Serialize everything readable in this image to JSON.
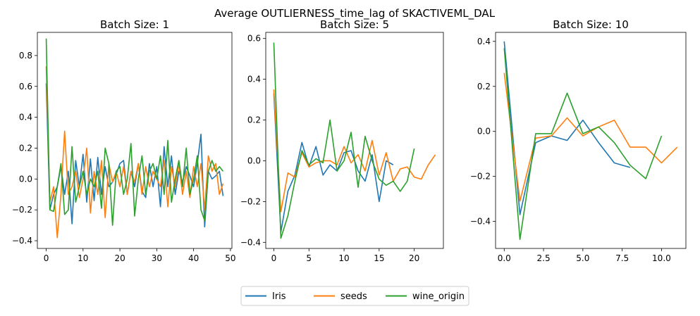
{
  "figure": {
    "suptitle": "Average OUTLIERNESS_time_lag of SKACTIVEML_DAL"
  },
  "colors": {
    "Iris": "#1f77b4",
    "seeds": "#ff7f0e",
    "wine_origin": "#2ca02c"
  },
  "legend": {
    "placement": "bottom-center",
    "entries": [
      "Iris",
      "seeds",
      "wine_origin"
    ]
  },
  "chart_data": [
    {
      "type": "line",
      "title": "Batch Size: 1",
      "xlim": [
        -2.4,
        50.4
      ],
      "ylim": [
        -0.45,
        0.95
      ],
      "xticks": [
        0,
        10,
        20,
        30,
        40,
        50
      ],
      "yticks": [
        -0.4,
        -0.2,
        0.0,
        0.2,
        0.4,
        0.6,
        0.8
      ],
      "series": [
        {
          "name": "Iris",
          "x": [
            0,
            1,
            2,
            3,
            4,
            5,
            6,
            7,
            8,
            9,
            10,
            11,
            12,
            13,
            14,
            15,
            16,
            17,
            18,
            19,
            20,
            21,
            22,
            23,
            24,
            25,
            26,
            27,
            28,
            29,
            30,
            31,
            32,
            33,
            34,
            35,
            36,
            37,
            38,
            39,
            40,
            41,
            42,
            43,
            44,
            45,
            46,
            47,
            48
          ],
          "values": [
            0.62,
            -0.2,
            -0.1,
            -0.05,
            0.08,
            -0.1,
            0.05,
            -0.29,
            0.12,
            -0.05,
            0.16,
            -0.15,
            0.13,
            -0.14,
            0.14,
            -0.1,
            0.08,
            -0.05,
            -0.02,
            0.03,
            0.1,
            0.12,
            -0.1,
            0.05,
            -0.05,
            0.1,
            -0.08,
            -0.12,
            0.1,
            -0.05,
            0.08,
            -0.18,
            0.21,
            -0.05,
            0.15,
            -0.1,
            0.05,
            -0.02,
            0.08,
            0.02,
            -0.05,
            0.1,
            0.29,
            -0.31,
            0.05,
            0.0,
            0.02,
            0.05,
            -0.11
          ]
        },
        {
          "name": "seeds",
          "x": [
            0,
            1,
            2,
            3,
            4,
            5,
            6,
            7,
            8,
            9,
            10,
            11,
            12,
            13,
            14,
            15,
            16,
            17,
            18,
            19,
            20,
            21,
            22,
            23,
            24,
            25,
            26,
            27,
            28,
            29,
            30,
            31,
            32,
            33,
            34,
            35,
            36,
            37,
            38,
            39,
            40,
            41,
            42,
            43,
            44,
            45,
            46,
            47,
            48
          ],
          "values": [
            0.73,
            -0.15,
            -0.05,
            -0.38,
            -0.1,
            0.31,
            -0.1,
            -0.05,
            0.05,
            -0.12,
            0.0,
            0.2,
            -0.22,
            0.05,
            -0.1,
            0.12,
            -0.25,
            0.1,
            -0.02,
            0.05,
            -0.05,
            0.08,
            -0.1,
            0.05,
            -0.02,
            0.1,
            -0.1,
            0.08,
            -0.05,
            0.05,
            0.0,
            -0.05,
            0.12,
            -0.18,
            0.08,
            -0.05,
            0.1,
            -0.1,
            0.05,
            -0.12,
            0.08,
            -0.05,
            0.1,
            -0.2,
            0.15,
            0.05,
            0.1,
            -0.1,
            -0.03
          ]
        },
        {
          "name": "wine_origin",
          "x": [
            0,
            1,
            2,
            3,
            4,
            5,
            6,
            7,
            8,
            9,
            10,
            11,
            12,
            13,
            14,
            15,
            16,
            17,
            18,
            19,
            20,
            21,
            22,
            23,
            24,
            25,
            26,
            27,
            28,
            29,
            30,
            31,
            32,
            33,
            34,
            35,
            36,
            37,
            38,
            39,
            40,
            41,
            42,
            43,
            44,
            45,
            46,
            47,
            48
          ],
          "values": [
            0.91,
            -0.2,
            -0.21,
            -0.05,
            0.1,
            -0.23,
            -0.2,
            0.21,
            -0.15,
            -0.05,
            0.05,
            -0.1,
            0.0,
            -0.05,
            0.05,
            -0.19,
            0.2,
            0.1,
            -0.3,
            0.05,
            0.08,
            -0.1,
            0.0,
            0.23,
            -0.24,
            0.0,
            0.15,
            -0.1,
            0.05,
            0.1,
            0.0,
            0.15,
            -0.1,
            0.25,
            -0.15,
            0.0,
            0.12,
            -0.05,
            0.2,
            -0.1,
            0.0,
            0.15,
            -0.2,
            -0.27,
            0.05,
            0.12,
            0.05,
            0.08,
            0.05
          ]
        }
      ]
    },
    {
      "type": "line",
      "title": "Batch Size: 5",
      "xlim": [
        -1.15,
        24.15
      ],
      "ylim": [
        -0.43,
        0.63
      ],
      "xticks": [
        0,
        5,
        10,
        15,
        20
      ],
      "yticks": [
        -0.4,
        -0.2,
        0.0,
        0.2,
        0.4,
        0.6
      ],
      "series": [
        {
          "name": "Iris",
          "x": [
            0,
            1,
            2,
            3,
            4,
            5,
            6,
            7,
            8,
            9,
            10,
            11,
            12,
            13,
            14,
            15,
            16,
            17
          ],
          "values": [
            0.33,
            -0.35,
            -0.15,
            -0.07,
            0.09,
            -0.03,
            0.07,
            -0.07,
            -0.02,
            -0.05,
            0.04,
            0.05,
            -0.05,
            -0.1,
            0.03,
            -0.2,
            0.0,
            -0.02
          ]
        },
        {
          "name": "seeds",
          "x": [
            0,
            1,
            2,
            3,
            4,
            5,
            6,
            7,
            8,
            9,
            10,
            11,
            12,
            13,
            14,
            15,
            16,
            17,
            18,
            19,
            20,
            21,
            22,
            23
          ],
          "values": [
            0.35,
            -0.25,
            -0.06,
            -0.08,
            0.04,
            -0.03,
            -0.01,
            0.0,
            0.0,
            -0.02,
            0.07,
            -0.01,
            0.03,
            -0.05,
            0.1,
            -0.07,
            0.04,
            -0.1,
            -0.04,
            -0.03,
            -0.08,
            -0.09,
            -0.02,
            0.03
          ]
        },
        {
          "name": "wine_origin",
          "x": [
            0,
            1,
            2,
            3,
            4,
            5,
            6,
            7,
            8,
            9,
            10,
            11,
            12,
            13,
            14,
            15,
            16,
            17,
            18,
            19,
            20
          ],
          "values": [
            0.58,
            -0.38,
            -0.27,
            -0.1,
            0.05,
            -0.02,
            0.01,
            -0.01,
            0.2,
            -0.05,
            0.0,
            0.14,
            -0.13,
            0.12,
            0.0,
            -0.09,
            -0.12,
            -0.1,
            -0.15,
            -0.1,
            0.06
          ]
        }
      ]
    },
    {
      "type": "line",
      "title": "Batch Size: 10",
      "xlim": [
        -0.55,
        11.55
      ],
      "ylim": [
        -0.52,
        0.44
      ],
      "xticks": [
        0.0,
        2.5,
        5.0,
        7.5,
        10.0
      ],
      "yticks": [
        -0.4,
        -0.2,
        0.0,
        0.2,
        0.4
      ],
      "series": [
        {
          "name": "Iris",
          "x": [
            0,
            1,
            2,
            3,
            4,
            5,
            6,
            7,
            8
          ],
          "values": [
            0.4,
            -0.37,
            -0.05,
            -0.02,
            -0.04,
            0.05,
            -0.05,
            -0.14,
            -0.16
          ]
        },
        {
          "name": "seeds",
          "x": [
            0,
            1,
            2,
            3,
            4,
            5,
            6,
            7,
            8,
            9,
            10,
            11
          ],
          "values": [
            0.26,
            -0.31,
            -0.03,
            -0.02,
            0.06,
            -0.02,
            0.02,
            0.05,
            -0.07,
            -0.07,
            -0.14,
            -0.07
          ]
        },
        {
          "name": "wine_origin",
          "x": [
            0,
            1,
            2,
            3,
            4,
            5,
            6,
            7,
            8,
            9,
            10
          ],
          "values": [
            0.37,
            -0.48,
            -0.01,
            -0.01,
            0.17,
            -0.01,
            0.02,
            -0.05,
            -0.15,
            -0.21,
            -0.02
          ]
        }
      ]
    }
  ]
}
